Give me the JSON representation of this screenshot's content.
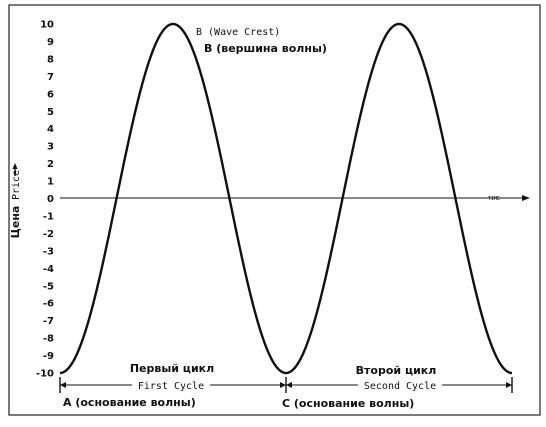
{
  "chart_data": {
    "type": "line",
    "y_ticks": [
      10,
      9,
      8,
      7,
      6,
      5,
      4,
      3,
      2,
      1,
      0,
      -1,
      -2,
      -3,
      -4,
      -5,
      -6,
      -7,
      -8,
      -9,
      -10
    ],
    "ylim": [
      -10,
      10
    ],
    "ylabel_ru": "Цена",
    "ylabel_en": "Price",
    "xlabel": "TIME",
    "grid": false,
    "series": [
      {
        "x": [
          0,
          0.5,
          1,
          1.5,
          2
        ],
        "y": [
          -10,
          10,
          -10,
          10,
          -10
        ]
      }
    ],
    "annotations": {
      "crest_en": "B (Wave Crest)",
      "crest_ru": "B (вершина волны)",
      "cycle1_ru": "Первый цикл",
      "cycle1_en": "First Cycle",
      "cycle2_ru": "Второй цикл",
      "cycle2_en": "Second Cycle",
      "base_a": "A (основание волны)",
      "base_c": "C (основание волны)"
    },
    "colors": {
      "curve": "#111111",
      "axis": "#111111",
      "frame": "#222222"
    }
  }
}
